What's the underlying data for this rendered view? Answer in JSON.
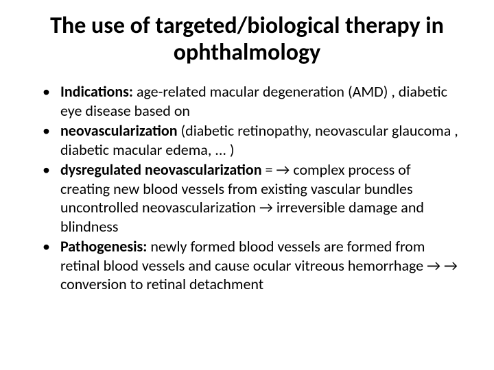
{
  "title": "The use of targeted/biological therapy in ophthalmology",
  "bullets": [
    {
      "bold": "Indications:",
      "rest": " age-related macular degeneration (AMD) , diabetic eye disease based on"
    },
    {
      "bold": "neovascularization",
      "rest": " (diabetic retinopathy, neovascular glaucoma , diabetic macular edema, ... )"
    },
    {
      "bold": "dysregulated neovascularization",
      "rest": " = → complex process of creating new blood vessels from existing vascular bundles uncontrolled neovascularization → irreversible damage and blindness"
    },
    {
      "bold": "Pathogenesis:",
      "rest": " newly formed blood vessels are formed from retinal blood vessels and cause ocular vitreous hemorrhage → → conversion to retinal detachment"
    }
  ],
  "colors": {
    "text": "#000000",
    "background": "#ffffff"
  },
  "typography": {
    "title_fontsize": 34,
    "title_weight": 700,
    "body_fontsize": 22,
    "font_family": "Calibri"
  }
}
